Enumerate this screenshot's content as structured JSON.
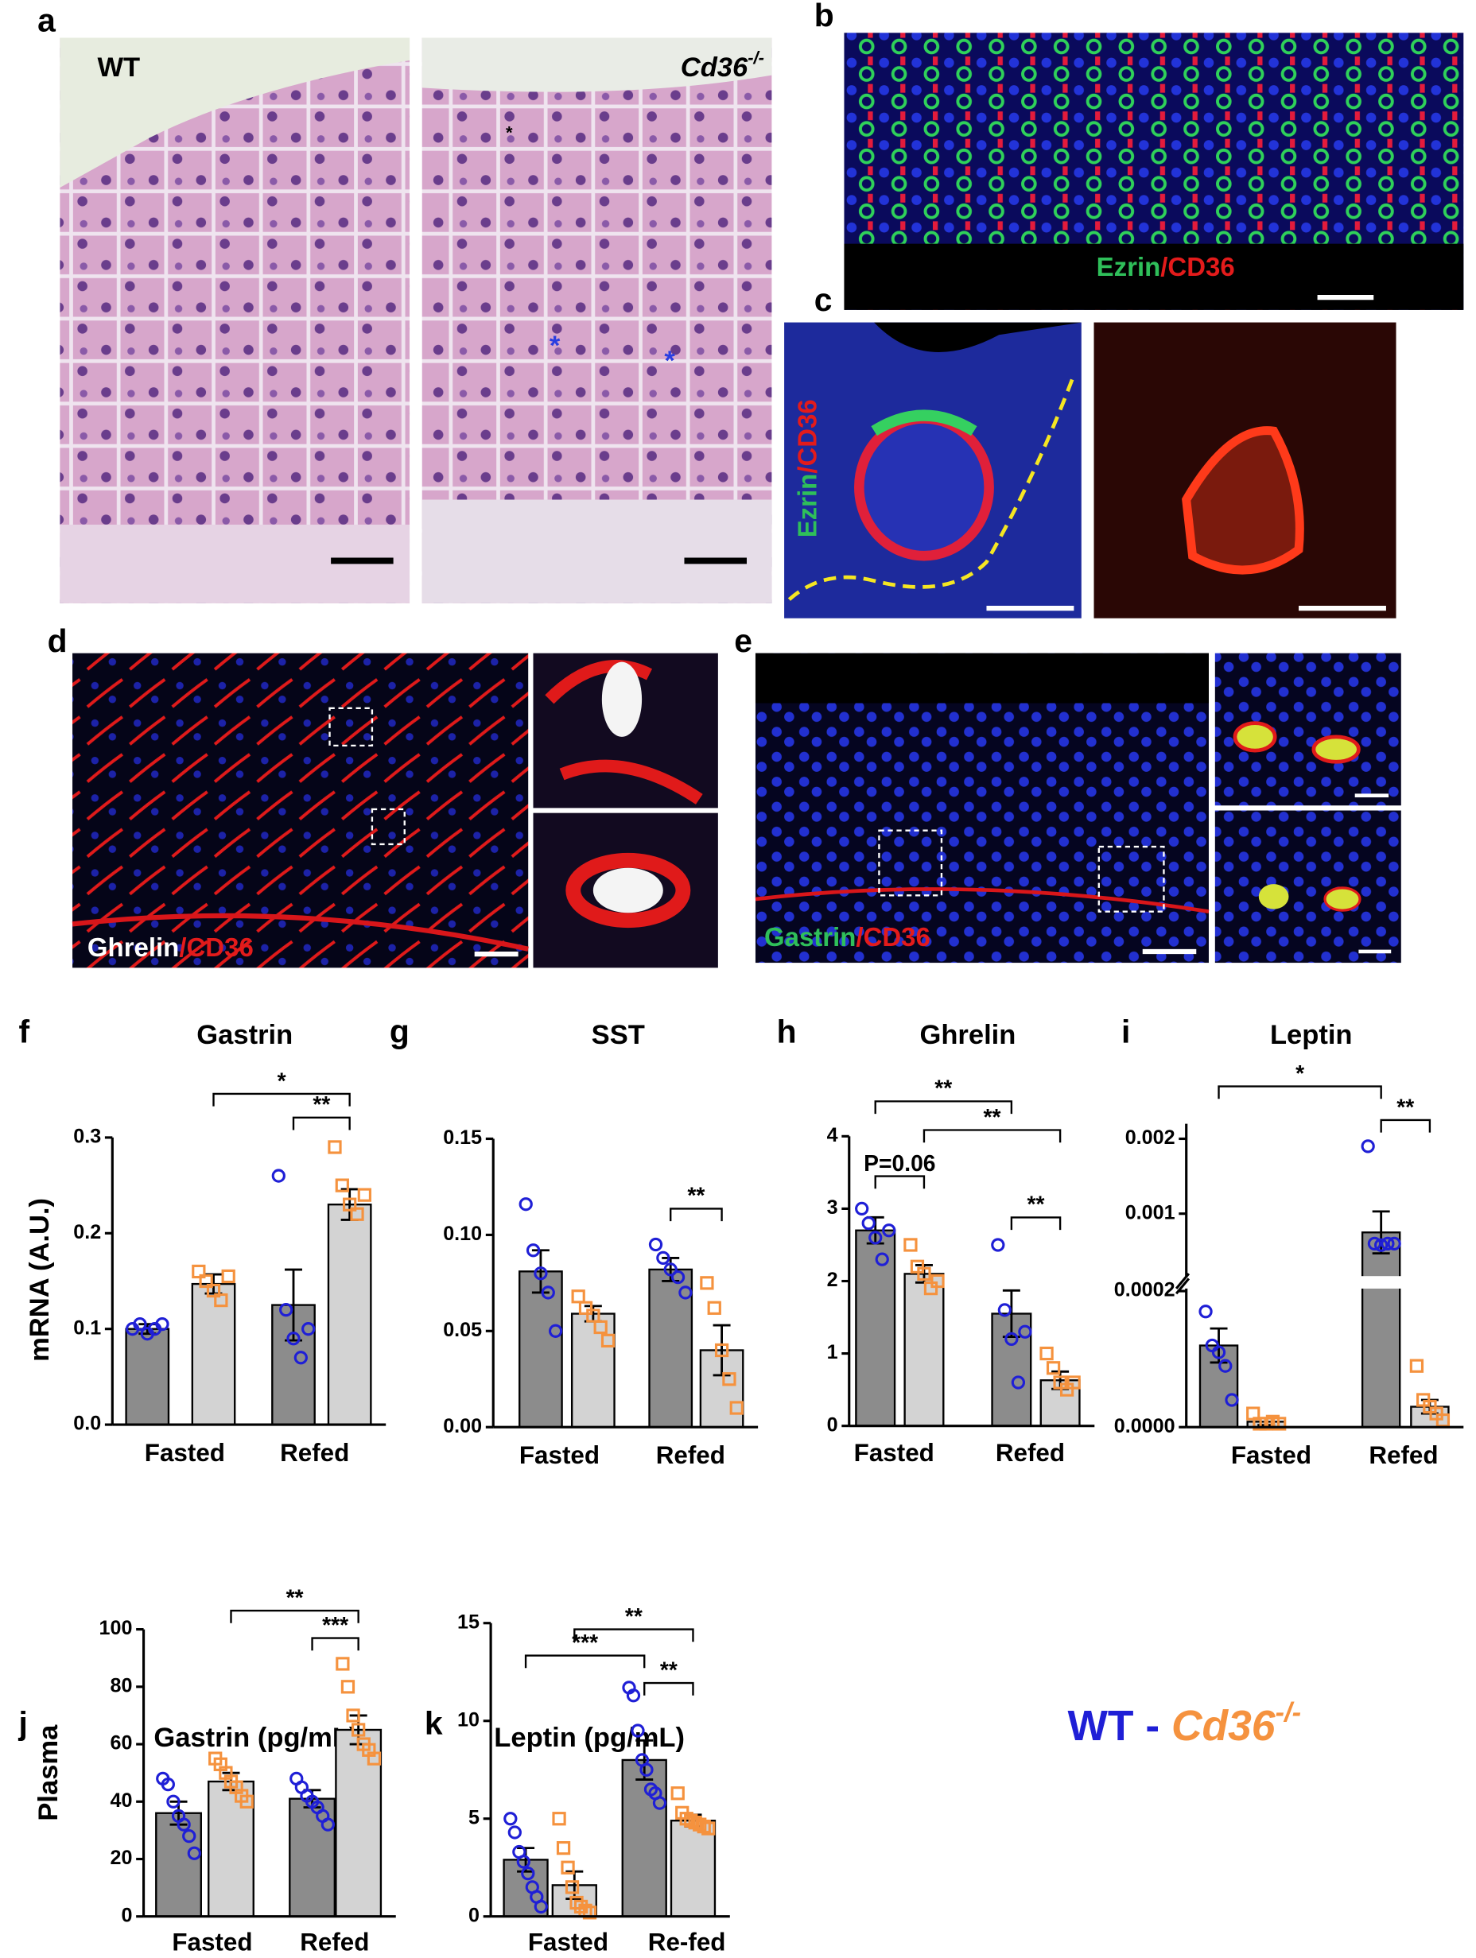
{
  "panels": {
    "a": {
      "letter": "a",
      "left_label": "WT",
      "right_label": [
        "Cd36",
        "-/-"
      ],
      "asterisks": [
        "*",
        "*",
        "*"
      ]
    },
    "b": {
      "letter": "b",
      "label": [
        "Ezrin",
        "/CD36"
      ]
    },
    "c": {
      "letter": "c",
      "label": [
        "Ezrin",
        "/CD36"
      ]
    },
    "d": {
      "letter": "d",
      "label": [
        "Ghrelin",
        "/CD36"
      ]
    },
    "e": {
      "letter": "e",
      "label": [
        "Gastrin",
        "/CD36"
      ]
    }
  },
  "legend": {
    "parts": [
      "WT",
      " - ",
      "Cd36",
      "-/-"
    ]
  },
  "chart_data": [
    {
      "type": "bar",
      "letter": "f",
      "title": "Gastrin",
      "ylabel": "mRNA (A.U.)",
      "categories": [
        "Fasted",
        "Refed"
      ],
      "ylim": [
        0,
        0.3
      ],
      "yticks": [
        {
          "value": 0,
          "label": "0.0"
        },
        0.1,
        0.2,
        0.3
      ],
      "series": [
        {
          "color": "#8c8c8c",
          "point_color": "#1f1fd6",
          "marker": "circle",
          "values": [
            0.1,
            0.125
          ],
          "errors": [
            0.005,
            0.037
          ],
          "points": [
            [
              0.1,
              0.105,
              0.095,
              0.1,
              0.105
            ],
            [
              0.26,
              0.12,
              0.09,
              0.07,
              0.1
            ]
          ]
        },
        {
          "color": "#d3d3d3",
          "point_color": "#f5923e",
          "marker": "square",
          "values": [
            0.147,
            0.23
          ],
          "errors": [
            0.01,
            0.016
          ],
          "points": [
            [
              0.16,
              0.15,
              0.14,
              0.13,
              0.155
            ],
            [
              0.29,
              0.25,
              0.23,
              0.22,
              0.24
            ]
          ]
        }
      ],
      "annotations": [
        "*",
        "**"
      ]
    },
    {
      "type": "bar",
      "letter": "g",
      "title": "SST",
      "categories": [
        "Fasted",
        "Refed"
      ],
      "ylim": [
        0,
        0.15
      ],
      "yticks": [
        {
          "value": 0,
          "label": "0.00"
        },
        0.05,
        {
          "value": 0.1,
          "label": "0.10"
        },
        0.15
      ],
      "series": [
        {
          "color": "#8c8c8c",
          "point_color": "#1f1fd6",
          "marker": "circle",
          "values": [
            0.081,
            0.082
          ],
          "errors": [
            0.011,
            0.006
          ],
          "points": [
            [
              0.116,
              0.092,
              0.08,
              0.07,
              0.05
            ],
            [
              0.095,
              0.088,
              0.082,
              0.078,
              0.07
            ]
          ]
        },
        {
          "color": "#d3d3d3",
          "point_color": "#f5923e",
          "marker": "square",
          "values": [
            0.059,
            0.04
          ],
          "errors": [
            0.004,
            0.013
          ],
          "points": [
            [
              0.068,
              0.062,
              0.058,
              0.052,
              0.045
            ],
            [
              0.075,
              0.062,
              0.04,
              0.025,
              0.01
            ]
          ]
        }
      ],
      "annotations": [
        "**"
      ]
    },
    {
      "type": "bar",
      "letter": "h",
      "title": "Ghrelin",
      "categories": [
        "Fasted",
        "Refed"
      ],
      "ylim": [
        0,
        4
      ],
      "yticks": [
        0,
        1,
        2,
        3,
        4
      ],
      "series": [
        {
          "color": "#8c8c8c",
          "point_color": "#1f1fd6",
          "marker": "circle",
          "values": [
            2.7,
            1.55
          ],
          "errors": [
            0.18,
            0.32
          ],
          "points": [
            [
              3.0,
              2.8,
              2.6,
              2.3,
              2.7
            ],
            [
              2.5,
              1.6,
              1.2,
              0.6,
              1.3
            ]
          ]
        },
        {
          "color": "#d3d3d3",
          "point_color": "#f5923e",
          "marker": "square",
          "values": [
            2.1,
            0.63
          ],
          "errors": [
            0.12,
            0.12
          ],
          "points": [
            [
              2.5,
              2.2,
              2.1,
              1.9,
              2.0
            ],
            [
              1.0,
              0.8,
              0.6,
              0.5,
              0.6
            ]
          ]
        }
      ],
      "annotations": [
        "**",
        "**",
        "P=0.06",
        "**"
      ]
    },
    {
      "type": "bar",
      "letter": "i",
      "title": "Leptin",
      "categories": [
        "Fasted",
        "Refed"
      ],
      "ylim": [
        0,
        0.0022
      ],
      "ybreak": 0.0002,
      "yticks": [
        {
          "value": 0,
          "label": "0.0000"
        },
        0.0002,
        0.001,
        0.002
      ],
      "series": [
        {
          "color": "#8c8c8c",
          "point_color": "#1f1fd6",
          "marker": "circle",
          "values": [
            0.00012,
            0.00075
          ],
          "errors": [
            2.5e-05,
            0.00028
          ],
          "points": [
            [
              0.00017,
              0.00012,
              0.00011,
              9e-05,
              4e-05
            ],
            [
              0.0019,
              0.0006,
              0.00058,
              0.0006,
              0.0006
            ]
          ]
        },
        {
          "color": "#d3d3d3",
          "point_color": "#f5923e",
          "marker": "square",
          "values": [
            8e-06,
            3e-05
          ],
          "errors": [
            5e-06,
            1e-05
          ],
          "points": [
            [
              2e-05,
              5e-06,
              5e-06,
              8e-06,
              5e-06
            ],
            [
              9e-05,
              4e-05,
              3e-05,
              2e-05,
              1e-05
            ]
          ]
        }
      ],
      "annotations": [
        "*",
        "**"
      ]
    },
    {
      "type": "bar",
      "letter": "j",
      "title": "Gastrin (pg/mL)",
      "ylabel": "Plasma",
      "categories": [
        "Fasted",
        "Refed"
      ],
      "ylim": [
        0,
        100
      ],
      "yticks": [
        0,
        20,
        40,
        60,
        80,
        100
      ],
      "series": [
        {
          "color": "#8c8c8c",
          "point_color": "#1f1fd6",
          "marker": "circle",
          "values": [
            36,
            41
          ],
          "errors": [
            4,
            3
          ],
          "points": [
            [
              48,
              46,
              40,
              35,
              32,
              28,
              22
            ],
            [
              48,
              45,
              42,
              40,
              38,
              35,
              32
            ]
          ]
        },
        {
          "color": "#d3d3d3",
          "point_color": "#f5923e",
          "marker": "square",
          "values": [
            47,
            65
          ],
          "errors": [
            3,
            5
          ],
          "points": [
            [
              55,
              53,
              50,
              47,
              45,
              42,
              40
            ],
            [
              88,
              80,
              70,
              65,
              60,
              58,
              55
            ]
          ]
        }
      ],
      "annotations": [
        "**",
        "***"
      ]
    },
    {
      "type": "bar",
      "letter": "k",
      "title": "Leptin (pg/mL)",
      "categories": [
        "Fasted",
        "Re-fed"
      ],
      "ylim": [
        0,
        15
      ],
      "yticks": [
        0,
        5,
        10,
        15
      ],
      "series": [
        {
          "color": "#8c8c8c",
          "point_color": "#1f1fd6",
          "marker": "circle",
          "values": [
            2.9,
            8.0
          ],
          "errors": [
            0.6,
            1.0
          ],
          "points": [
            [
              5.0,
              4.3,
              3.3,
              2.8,
              2.2,
              1.5,
              1.0,
              0.5
            ],
            [
              11.7,
              11.3,
              9.5,
              8.0,
              7.5,
              6.5,
              6.3,
              5.8
            ]
          ]
        },
        {
          "color": "#d3d3d3",
          "point_color": "#f5923e",
          "marker": "square",
          "values": [
            1.6,
            4.9
          ],
          "errors": [
            0.7,
            0.3
          ],
          "points": [
            [
              5.0,
              3.5,
              2.5,
              1.5,
              0.7,
              0.5,
              0.3,
              0.2
            ],
            [
              6.3,
              5.3,
              5.0,
              4.9,
              4.8,
              4.7,
              4.6,
              4.5
            ]
          ]
        }
      ],
      "annotations": [
        "**",
        "***",
        "**"
      ]
    }
  ]
}
